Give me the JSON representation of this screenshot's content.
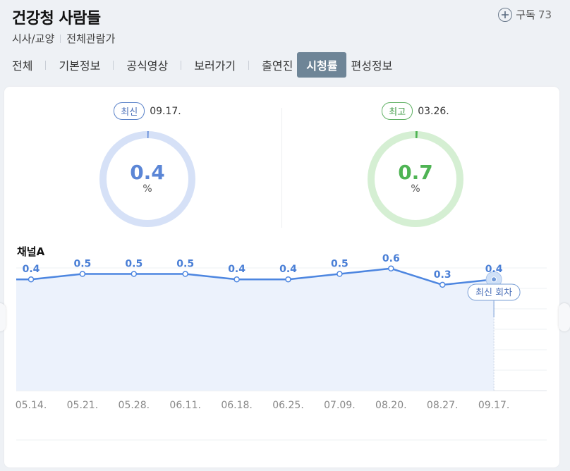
{
  "header": {
    "title": "건강청 사람들",
    "genre": "시사/교양",
    "rating": "전체관람가",
    "subscribe_label": "구독",
    "subscribe_count": "73"
  },
  "tabs": [
    {
      "label": "전체"
    },
    {
      "label": "기본정보"
    },
    {
      "label": "공식영상"
    },
    {
      "label": "보러가기"
    },
    {
      "label": "출연진"
    },
    {
      "label": "시청률",
      "active": true
    },
    {
      "label": "편성정보"
    }
  ],
  "summary": {
    "latest": {
      "badge": "최신",
      "date": "09.17.",
      "value": "0.4",
      "unit": "%",
      "color": "#5b86d6",
      "track": "#d6e1f7"
    },
    "highest": {
      "badge": "최고",
      "date": "03.26.",
      "value": "0.7",
      "unit": "%",
      "color": "#4fb454",
      "track": "#d5efd3"
    }
  },
  "chart_data": {
    "type": "line",
    "title": "채널A",
    "categories": [
      "05.14.",
      "05.21.",
      "05.28.",
      "06.11.",
      "06.18.",
      "06.25.",
      "07.09.",
      "08.20.",
      "08.27.",
      "09.17."
    ],
    "values": [
      0.4,
      0.5,
      0.5,
      0.5,
      0.4,
      0.4,
      0.5,
      0.6,
      0.3,
      0.4
    ],
    "value_labels": [
      "0.4",
      "0.5",
      "0.5",
      "0.5",
      "0.4",
      "0.4",
      "0.5",
      "0.6",
      "0.3",
      "0.4"
    ],
    "annotation": "최신 회차",
    "grid": true,
    "line_color": "#4d86e0",
    "fill_color": "#ecf2fc"
  }
}
